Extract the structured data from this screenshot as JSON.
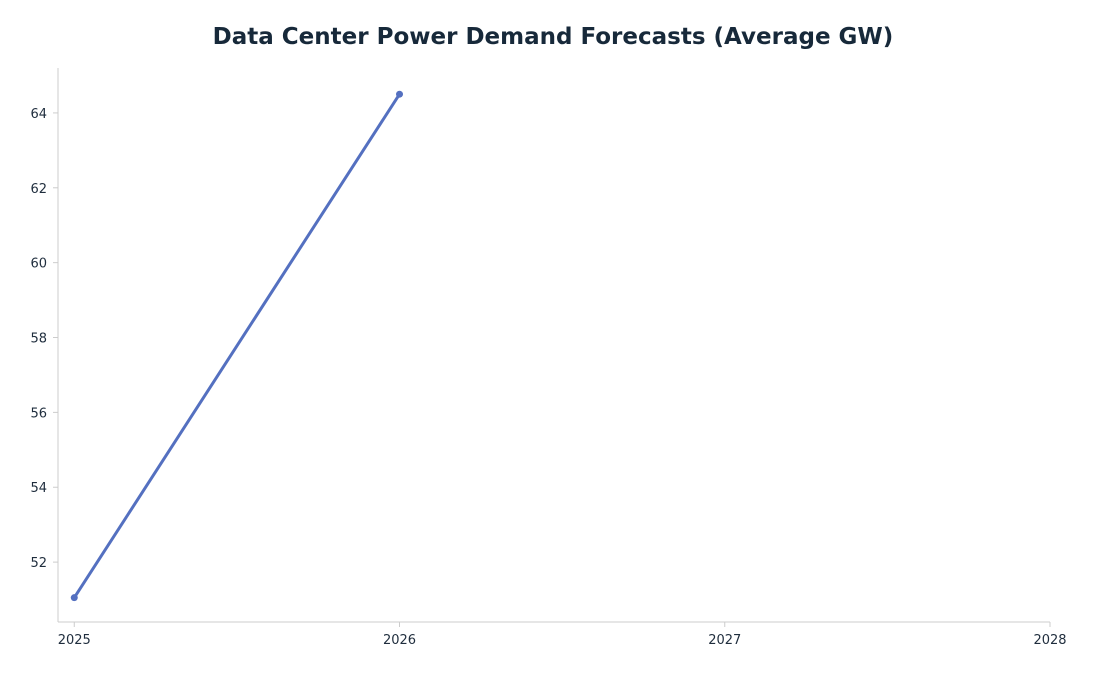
{
  "chart_data": {
    "type": "line",
    "title": "Data Center Power Demand Forecasts (Average GW)",
    "xlabel": "",
    "ylabel": "",
    "xlim": [
      2024.95,
      2028
    ],
    "ylim": [
      50.4,
      65.2
    ],
    "x_ticks": [
      2025,
      2026,
      2027,
      2028
    ],
    "y_ticks": [
      52,
      54,
      56,
      58,
      60,
      62,
      64
    ],
    "grid": false,
    "legend": "none",
    "series": [
      {
        "x": [
          2025,
          2026
        ],
        "y": [
          51.05,
          64.5
        ],
        "color": "#5470c0"
      }
    ],
    "colors": {
      "axis": "#cccccc",
      "tick_text": "#1f2d3d",
      "title": "#17293a"
    }
  }
}
